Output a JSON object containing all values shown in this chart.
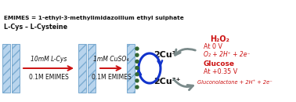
{
  "bg_color": "#ffffff",
  "electrode_color": "#b8d4ed",
  "electrode_edge": "#7aaad0",
  "dot_color": "#336633",
  "red_color": "#cc1111",
  "blue_color": "#1133cc",
  "gray_color": "#7a8a8a",
  "black_color": "#111111",
  "left_line1": "10mM L-Cys",
  "left_line2": "0.1M EMIMES",
  "mid_line1": "1mM CuSO₄",
  "mid_line2": "0.1M EMIMES",
  "cu3": "2Cu³⁺",
  "cu2": "2Cu²⁺",
  "h2o2": "H₂O₂",
  "at0v": "At 0 V",
  "o2_line": "O₂ + 2H⁺ + 2e⁻",
  "glucose": "Glucose",
  "at035v": "At +0.35 V",
  "glucono": "Gluconolactone + 2H⁺ + 2e⁻",
  "legend1": "L-Cys – L-Cysteine",
  "legend2": "EMIMES = 1-ethyl-3-methylimidazoilium ethyl sulphate"
}
